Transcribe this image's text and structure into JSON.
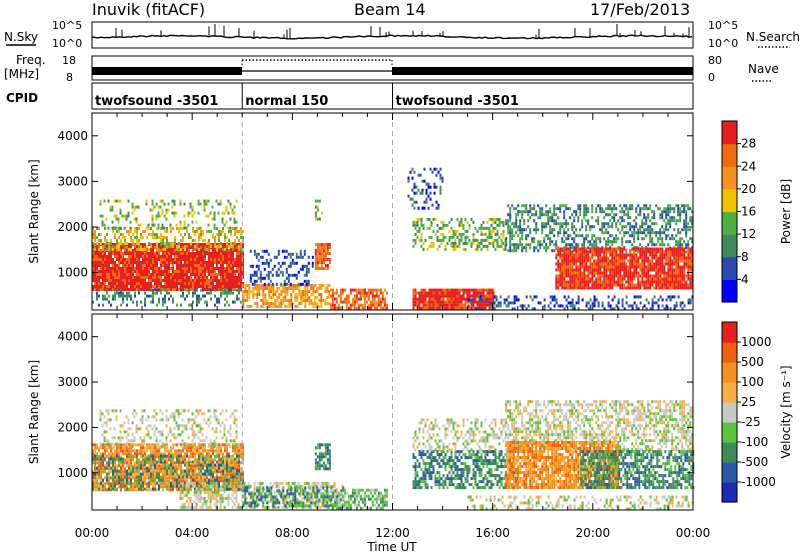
{
  "header": {
    "station": "Inuvik (fitACF)",
    "beam": "Beam 14",
    "date": "17/Feb/2013"
  },
  "top_panels": {
    "nsky_label": "N.Sky",
    "nsky_ticks": [
      "10^5",
      "10^0"
    ],
    "nsearch_ticks": [
      "10^5",
      "10^0"
    ],
    "nsearch_label": "N.Search",
    "freq_label": "Freq.",
    "freq_unit": "[MHz]",
    "freq_ticks": [
      "18",
      "8"
    ],
    "nave_ticks": [
      "80",
      "0"
    ],
    "nave_label": "Nave",
    "cpid_label": "CPID",
    "cpid_segments": [
      {
        "name": "twofsound -3501",
        "start": 0,
        "end": 6
      },
      {
        "name": "normal 150",
        "start": 6,
        "end": 12
      },
      {
        "name": "twofsound -3501",
        "start": 12,
        "end": 24
      }
    ]
  },
  "chart_data": [
    {
      "type": "heatmap",
      "title": "",
      "xlabel": "Time UT",
      "ylabel": "Slant Range [km]",
      "x_ticks": [
        "00:00",
        "04:00",
        "08:00",
        "12:00",
        "16:00",
        "20:00",
        "00:00"
      ],
      "xlim": [
        0,
        24
      ],
      "ylim": [
        180,
        4500
      ],
      "y_ticks": [
        1000,
        2000,
        3000,
        4000
      ],
      "colorbar": {
        "label": "Power [dB]",
        "ticks": [
          4,
          8,
          12,
          16,
          20,
          24,
          28
        ],
        "colors": [
          "#0000ff",
          "#2a4ab0",
          "#3e8a5a",
          "#4fb040",
          "#f2c200",
          "#f79020",
          "#f26a10",
          "#e62020"
        ]
      },
      "regions": [
        {
          "t0": 0.0,
          "t1": 6.0,
          "r0": 650,
          "r1": 1650,
          "level": 7,
          "density": 0.95
        },
        {
          "t0": 0.0,
          "t1": 6.0,
          "r0": 1500,
          "r1": 2000,
          "level": 4,
          "density": 0.45
        },
        {
          "t0": 0.3,
          "t1": 5.8,
          "r0": 2000,
          "r1": 2600,
          "level": 3,
          "density": 0.25
        },
        {
          "t0": 0.0,
          "t1": 6.0,
          "r0": 300,
          "r1": 650,
          "level": 2,
          "density": 0.4
        },
        {
          "t0": 6.0,
          "t1": 9.5,
          "r0": 250,
          "r1": 750,
          "level": 5,
          "density": 0.7
        },
        {
          "t0": 6.3,
          "t1": 8.8,
          "r0": 750,
          "r1": 1500,
          "level": 1,
          "density": 0.35
        },
        {
          "t0": 8.9,
          "t1": 9.5,
          "r0": 1100,
          "r1": 1650,
          "level": 6,
          "density": 0.8
        },
        {
          "t0": 8.9,
          "t1": 9.2,
          "r0": 2200,
          "r1": 2600,
          "level": 3,
          "density": 0.5
        },
        {
          "t0": 9.5,
          "t1": 11.8,
          "r0": 250,
          "r1": 650,
          "level": 6,
          "density": 0.7
        },
        {
          "t0": 12.8,
          "t1": 16.0,
          "r0": 200,
          "r1": 650,
          "level": 7,
          "density": 0.95
        },
        {
          "t0": 12.8,
          "t1": 16.5,
          "r0": 1500,
          "r1": 2200,
          "level": 3,
          "density": 0.45
        },
        {
          "t0": 12.6,
          "t1": 14.0,
          "r0": 2400,
          "r1": 3300,
          "level": 1,
          "density": 0.25
        },
        {
          "t0": 16.5,
          "t1": 24.0,
          "r0": 1500,
          "r1": 2500,
          "level": 2,
          "density": 0.5
        },
        {
          "t0": 18.5,
          "t1": 24.0,
          "r0": 650,
          "r1": 1550,
          "level": 7,
          "density": 0.9
        },
        {
          "t0": 15.0,
          "t1": 24.0,
          "r0": 200,
          "r1": 500,
          "level": 1,
          "density": 0.35
        }
      ]
    },
    {
      "type": "heatmap",
      "title": "",
      "xlabel": "Time UT",
      "ylabel": "Slant Range [km]",
      "x_ticks": [
        "00:00",
        "04:00",
        "08:00",
        "12:00",
        "16:00",
        "20:00",
        "00:00"
      ],
      "xlim": [
        0,
        24
      ],
      "ylim": [
        180,
        4500
      ],
      "y_ticks": [
        1000,
        2000,
        3000,
        4000
      ],
      "colorbar": {
        "label": "Velocity [m s⁻¹]",
        "ticks": [
          1000,
          500,
          100,
          25,
          -25,
          -100,
          -500,
          -1000
        ],
        "colors": [
          "#1c2ab8",
          "#2c58a8",
          "#3e8a5a",
          "#5cc43c",
          "#c8c8c8",
          "#f7b040",
          "#f79020",
          "#f26010",
          "#e62020"
        ]
      },
      "regions": [
        {
          "t0": 0.0,
          "t1": 6.0,
          "r0": 650,
          "r1": 1650,
          "level": 6,
          "density": 0.85
        },
        {
          "t0": 0.0,
          "t1": 6.0,
          "r0": 650,
          "r1": 1400,
          "level": 2,
          "density": 0.4
        },
        {
          "t0": 0.3,
          "t1": 5.8,
          "r0": 1600,
          "r1": 2400,
          "level": 4,
          "density": 0.3
        },
        {
          "t0": 3.5,
          "t1": 10.0,
          "r0": 250,
          "r1": 800,
          "level": 4,
          "density": 0.55
        },
        {
          "t0": 6.0,
          "t1": 10.0,
          "r0": 300,
          "r1": 700,
          "level": 2,
          "density": 0.5
        },
        {
          "t0": 8.9,
          "t1": 9.5,
          "r0": 1100,
          "r1": 1650,
          "level": 2,
          "density": 0.8
        },
        {
          "t0": 9.5,
          "t1": 11.8,
          "r0": 250,
          "r1": 650,
          "level": 3,
          "density": 0.6
        },
        {
          "t0": 12.8,
          "t1": 17.0,
          "r0": 700,
          "r1": 1500,
          "level": 2,
          "density": 0.6
        },
        {
          "t0": 12.8,
          "t1": 16.5,
          "r0": 1500,
          "r1": 2200,
          "level": 4,
          "density": 0.4
        },
        {
          "t0": 16.5,
          "t1": 24.0,
          "r0": 1500,
          "r1": 2600,
          "level": 4,
          "density": 0.55
        },
        {
          "t0": 16.5,
          "t1": 21.0,
          "r0": 700,
          "r1": 1700,
          "level": 6,
          "density": 0.85
        },
        {
          "t0": 19.5,
          "t1": 24.0,
          "r0": 700,
          "r1": 1500,
          "level": 2,
          "density": 0.65
        },
        {
          "t0": 15.0,
          "t1": 24.0,
          "r0": 200,
          "r1": 500,
          "level": 4,
          "density": 0.35
        }
      ]
    }
  ]
}
